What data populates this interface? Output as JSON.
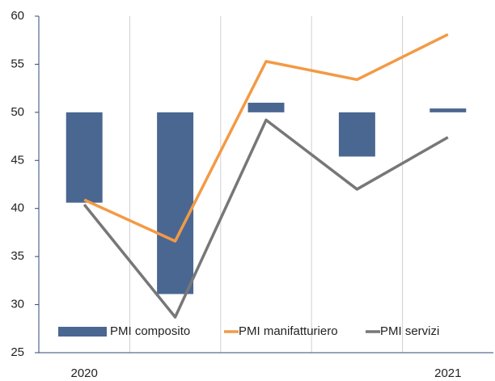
{
  "chart_data": {
    "type": "bar_line",
    "categories": [
      "2020",
      null,
      null,
      null,
      "2021"
    ],
    "bar_base": 50,
    "series": [
      {
        "name": "PMI composito",
        "type": "bar",
        "color": "#4a6791",
        "values": [
          40.6,
          31.1,
          51.0,
          45.4,
          50.4
        ]
      },
      {
        "name": "PMI manifatturiero",
        "type": "line",
        "color": "#f39a45",
        "values": [
          40.9,
          36.6,
          55.3,
          53.4,
          58.1
        ]
      },
      {
        "name": "PMI servizi",
        "type": "line",
        "color": "#777777",
        "values": [
          40.4,
          28.7,
          49.2,
          42.0,
          47.4
        ]
      }
    ],
    "ylim": [
      25,
      60
    ],
    "yticks": [
      25,
      30,
      35,
      40,
      45,
      50,
      55,
      60
    ],
    "grid": "x",
    "legend": "bottom"
  }
}
